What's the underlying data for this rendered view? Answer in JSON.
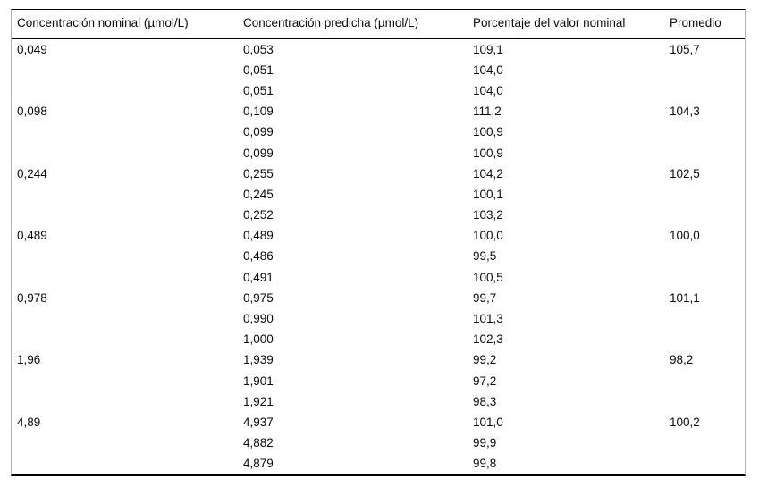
{
  "table": {
    "headers": [
      "Concentración nominal (µmol/L)",
      "Concentración predicha (µmol/L)",
      "Porcentaje del valor nominal",
      "Promedio"
    ],
    "groups": [
      {
        "nominal": "0,049",
        "predicted": [
          "0,053",
          "0,051",
          "0,051"
        ],
        "percent": [
          "109,1",
          "104,0",
          "104,0"
        ],
        "average": "105,7"
      },
      {
        "nominal": "0,098",
        "predicted": [
          "0,109",
          "0,099",
          "0,099"
        ],
        "percent": [
          "111,2",
          "100,9",
          "100,9"
        ],
        "average": "104,3"
      },
      {
        "nominal": "0,244",
        "predicted": [
          "0,255",
          "0,245",
          "0,252"
        ],
        "percent": [
          "104,2",
          "100,1",
          "103,2"
        ],
        "average": "102,5"
      },
      {
        "nominal": "0,489",
        "predicted": [
          "0,489",
          "0,486",
          "0,491"
        ],
        "percent": [
          "100,0",
          "99,5",
          "100,5"
        ],
        "average": "100,0"
      },
      {
        "nominal": "0,978",
        "predicted": [
          "0,975",
          "0,990",
          "1,000"
        ],
        "percent": [
          "99,7",
          "101,3",
          "102,3"
        ],
        "average": "101,1"
      },
      {
        "nominal": "1,96",
        "predicted": [
          "1,939",
          "1,901",
          "1,921"
        ],
        "percent": [
          "99,2",
          "97,2",
          "98,3"
        ],
        "average": "98,2"
      },
      {
        "nominal": "4,89",
        "predicted": [
          "4,937",
          "4,882",
          "4,879"
        ],
        "percent": [
          "101,0",
          "99,9",
          "99,8"
        ],
        "average": "100,2"
      }
    ]
  }
}
